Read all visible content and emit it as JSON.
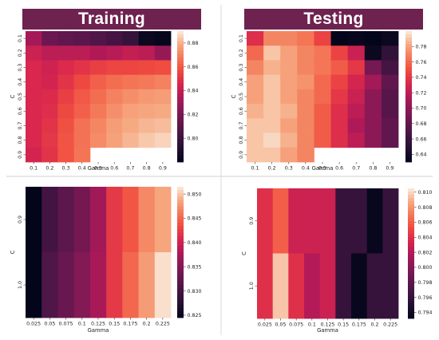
{
  "headers": {
    "training": "Training",
    "testing": "Testing"
  },
  "chart_data": [
    {
      "id": "train_top",
      "type": "heatmap",
      "colormap": "rocket",
      "x": [
        "0.1",
        "0.2",
        "0.3",
        "0.4",
        "0.5",
        "0.6",
        "0.7",
        "0.8",
        "0.9"
      ],
      "y": [
        "0.1",
        "0.2",
        "0.3",
        "0.4",
        "0.5",
        "0.6",
        "0.7",
        "0.8",
        "0.9"
      ],
      "xlabel": "Gamma",
      "ylabel": "C",
      "vmin": 0.78,
      "vmax": 0.89,
      "cbar_ticks": [
        0.8,
        0.82,
        0.84,
        0.86,
        0.88
      ],
      "values": [
        [
          0.832,
          0.815,
          0.812,
          0.81,
          0.807,
          0.803,
          0.798,
          0.783,
          0.781
        ],
        [
          0.842,
          0.838,
          0.838,
          0.838,
          0.835,
          0.837,
          0.84,
          0.838,
          0.828
        ],
        [
          0.846,
          0.843,
          0.847,
          0.85,
          0.853,
          0.855,
          0.855,
          0.856,
          0.857
        ],
        [
          0.846,
          0.844,
          0.85,
          0.856,
          0.862,
          0.865,
          0.867,
          0.868,
          0.87
        ],
        [
          0.846,
          0.847,
          0.853,
          0.86,
          0.865,
          0.87,
          0.873,
          0.875,
          0.876
        ],
        [
          0.846,
          0.848,
          0.856,
          0.862,
          0.868,
          0.873,
          0.877,
          0.878,
          0.879
        ],
        [
          0.846,
          0.85,
          0.858,
          0.866,
          0.871,
          0.876,
          0.879,
          0.881,
          0.882
        ],
        [
          0.846,
          0.851,
          0.859,
          0.866,
          0.872,
          0.877,
          0.881,
          0.884,
          0.886
        ],
        [
          0.844,
          0.85,
          0.859,
          0.867,
          null,
          null,
          null,
          null,
          null
        ]
      ]
    },
    {
      "id": "test_top",
      "type": "heatmap",
      "colormap": "rocket",
      "x": [
        "0.1",
        "0.2",
        "0.3",
        "0.4",
        "0.5",
        "0.6",
        "0.7",
        "0.8",
        "0.9"
      ],
      "y": [
        "0.1",
        "0.2",
        "0.3",
        "0.4",
        "0.5",
        "0.6",
        "0.7",
        "0.8",
        "0.9"
      ],
      "xlabel": "Gamma",
      "ylabel": "C",
      "vmin": 0.63,
      "vmax": 0.8,
      "cbar_ticks": [
        0.64,
        0.66,
        0.68,
        0.7,
        0.72,
        0.74,
        0.76,
        0.78
      ],
      "values": [
        [
          0.735,
          0.77,
          0.77,
          0.765,
          0.745,
          0.63,
          0.632,
          0.63,
          0.635
        ],
        [
          0.76,
          0.79,
          0.78,
          0.77,
          0.765,
          0.745,
          0.725,
          0.635,
          0.655
        ],
        [
          0.77,
          0.785,
          0.78,
          0.77,
          0.765,
          0.755,
          0.74,
          0.69,
          0.665
        ],
        [
          0.78,
          0.79,
          0.78,
          0.775,
          0.76,
          0.745,
          0.73,
          0.71,
          0.68
        ],
        [
          0.78,
          0.79,
          0.78,
          0.77,
          0.76,
          0.74,
          0.725,
          0.7,
          0.675
        ],
        [
          0.785,
          0.79,
          0.785,
          0.77,
          0.755,
          0.735,
          0.72,
          0.7,
          0.675
        ],
        [
          0.79,
          0.79,
          0.78,
          0.77,
          0.755,
          0.735,
          0.715,
          0.7,
          0.68
        ],
        [
          0.79,
          0.795,
          0.785,
          0.77,
          0.755,
          0.735,
          0.72,
          0.7,
          0.68
        ],
        [
          0.79,
          0.79,
          0.78,
          0.77,
          null,
          null,
          null,
          null,
          null
        ]
      ]
    },
    {
      "id": "train_bottom",
      "type": "heatmap",
      "colormap": "rocket",
      "x": [
        "0.025",
        "0.05",
        "0.075",
        "0.1",
        "0.125",
        "0.15",
        "0.175",
        "0.2",
        "0.225"
      ],
      "y": [
        "0.9",
        "1.0"
      ],
      "xlabel": "Gamma",
      "ylabel": "C",
      "vmin": 0.8245,
      "vmax": 0.8515,
      "cbar_ticks": [
        0.825,
        0.83,
        0.835,
        0.84,
        0.845,
        0.85
      ],
      "values": [
        [
          0.8245,
          0.83,
          0.832,
          0.834,
          0.837,
          0.842,
          0.844,
          0.847,
          0.8485
        ],
        [
          0.8245,
          0.831,
          0.833,
          0.835,
          0.8375,
          0.842,
          0.845,
          0.848,
          0.851
        ]
      ]
    },
    {
      "id": "test_bottom",
      "type": "heatmap",
      "colormap": "rocket",
      "x": [
        "0.025",
        "0.05",
        "0.075",
        "0.1",
        "0.125",
        "0.15",
        "0.175",
        "0.2",
        "0.225"
      ],
      "y": [
        "0.9",
        "1.0"
      ],
      "xlabel": "Gamma",
      "ylabel": "C",
      "vmin": 0.7932,
      "vmax": 0.8105,
      "cbar_ticks": [
        0.794,
        0.796,
        0.798,
        0.8,
        0.802,
        0.804,
        0.806,
        0.808,
        0.81
      ],
      "values": [
        [
          0.804,
          0.806,
          0.803,
          0.803,
          0.803,
          0.796,
          0.796,
          0.7935,
          0.796
        ],
        [
          0.804,
          0.8095,
          0.804,
          0.802,
          0.803,
          0.796,
          0.7935,
          0.796,
          0.796
        ]
      ]
    }
  ]
}
